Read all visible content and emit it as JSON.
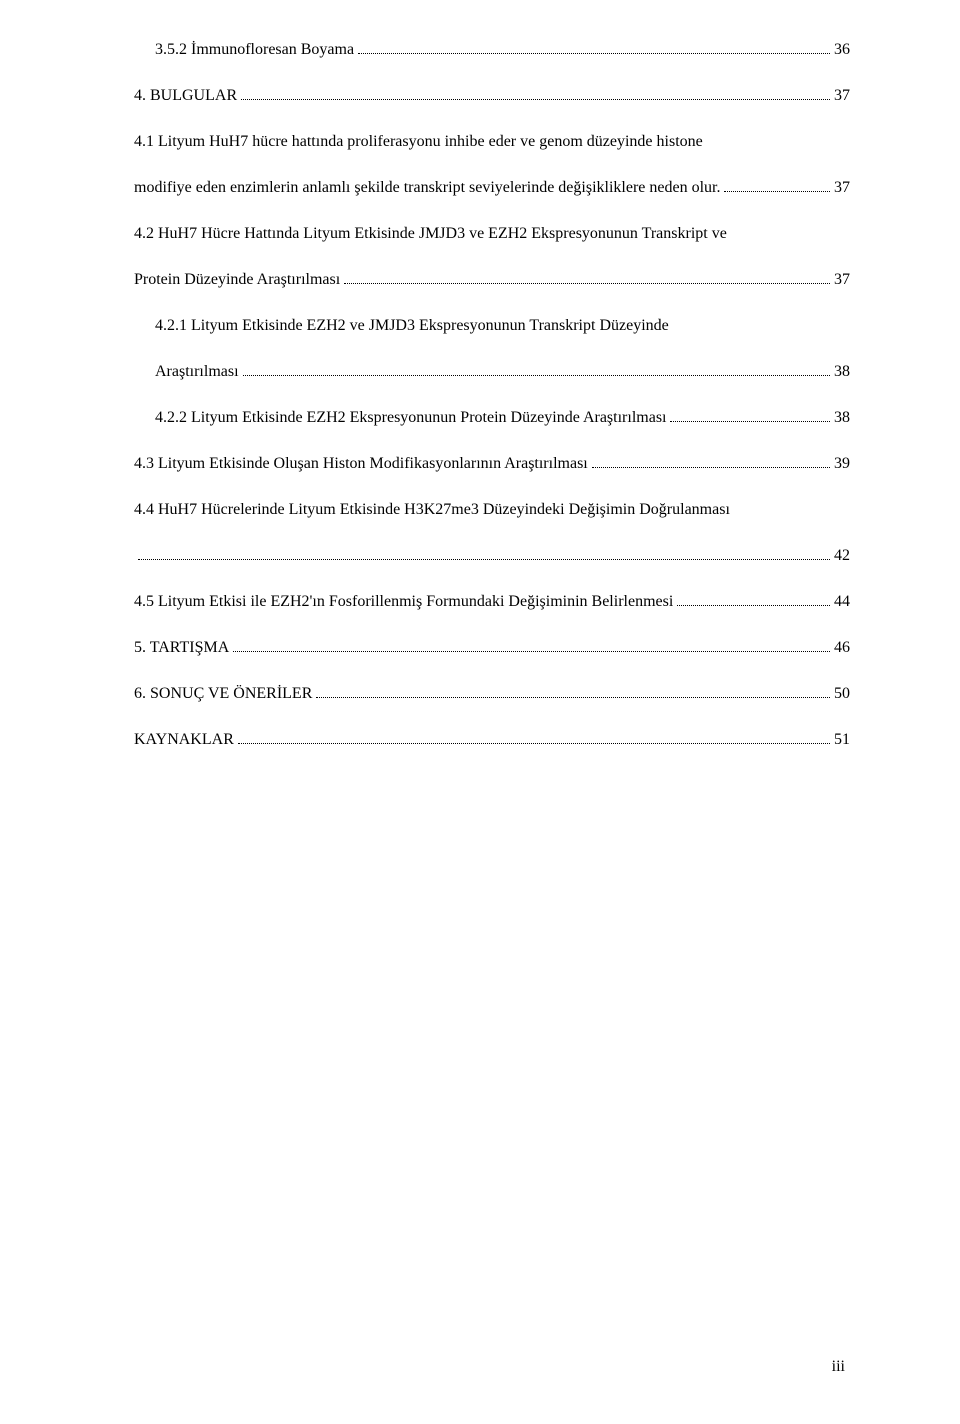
{
  "toc": [
    {
      "level": 1,
      "text": "3.5.2 İmmunofloresan Boyama",
      "page": "36",
      "multiline": false
    },
    {
      "level": 0,
      "text": "4. BULGULAR",
      "page": "37",
      "multiline": false
    },
    {
      "level": 0,
      "line1": "4.1 Lityum HuH7 hücre hattında proliferasyonu inhibe eder ve genom düzeyinde histone",
      "line2": "modifiye eden enzimlerin  anlamlı şekilde transkript seviyelerinde değişikliklere neden olur.",
      "page": "37",
      "multiline": true
    },
    {
      "level": 0,
      "line1": "4.2 HuH7 Hücre Hattında Lityum Etkisinde JMJD3 ve EZH2 Ekspresyonunun Transkript ve",
      "line2": "Protein Düzeyinde Araştırılması",
      "page": "37",
      "multiline": true
    },
    {
      "level": 1,
      "line1": "4.2.1 Lityum Etkisinde EZH2 ve JMJD3 Ekspresyonunun Transkript Düzeyinde",
      "line2": "Araştırılması",
      "page": "38",
      "multiline": true
    },
    {
      "level": 1,
      "text": "4.2.2 Lityum Etkisinde EZH2 Ekspresyonunun Protein Düzeyinde Araştırılması",
      "page": "38",
      "multiline": false
    },
    {
      "level": 0,
      "text": "4.3 Lityum Etkisinde Oluşan Histon Modifikasyonlarının Araştırılması",
      "page": "39",
      "multiline": false
    },
    {
      "level": 0,
      "line1": "4.4 HuH7 Hücrelerinde Lityum Etkisinde H3K27me3 Düzeyindeki Değişimin Doğrulanması",
      "line2": "",
      "page": "42",
      "multiline": true
    },
    {
      "level": 0,
      "text": "4.5 Lityum Etkisi ile EZH2'ın Fosforillenmiş Formundaki Değişiminin Belirlenmesi",
      "page": "44",
      "multiline": false
    },
    {
      "level": 0,
      "text": "5. TARTIŞMA",
      "page": "46",
      "multiline": false
    },
    {
      "level": 0,
      "text": "6. SONUÇ VE ÖNERİLER",
      "page": "50",
      "multiline": false
    },
    {
      "level": 0,
      "text": "KAYNAKLAR",
      "page": "51",
      "multiline": false
    }
  ],
  "pageNumber": "iii",
  "style": {
    "background": "#ffffff",
    "textColor": "#000000",
    "fontFamily": "Times New Roman",
    "fontSize": 16,
    "pageWidth": 960,
    "pageHeight": 1424
  }
}
